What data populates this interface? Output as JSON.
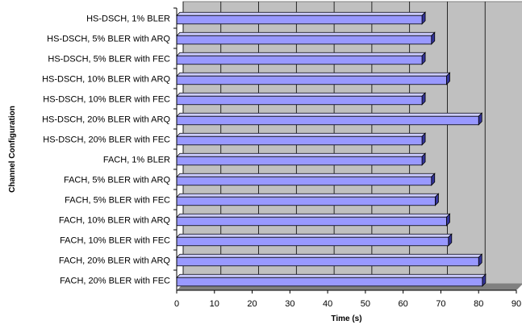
{
  "chart_data": {
    "type": "bar",
    "orientation": "horizontal",
    "style": "3d",
    "categories": [
      "HS-DSCH, 1% BLER",
      "HS-DSCH, 5% BLER with ARQ",
      "HS-DSCH, 5% BLER with FEC",
      "HS-DSCH, 10% BLER with ARQ",
      "HS-DSCH, 10% BLER with FEC",
      "HS-DSCH, 20% BLER with ARQ",
      "HS-DSCH, 20% BLER with FEC",
      "FACH, 1% BLER",
      "FACH, 5% BLER with ARQ",
      "FACH, 5% BLER with FEC",
      "FACH, 10% BLER with ARQ",
      "FACH, 10% BLER with FEC",
      "FACH, 20% BLER with ARQ",
      "FACH, 20% BLER with FEC"
    ],
    "values": [
      65,
      67.5,
      65,
      71.5,
      65,
      80,
      65,
      65,
      67.5,
      68.5,
      71.5,
      72,
      80,
      81
    ],
    "xlabel": "Time (s)",
    "ylabel": "Channel Configuration",
    "xlim": [
      0,
      90
    ],
    "xticks": [
      "0",
      "10",
      "20",
      "30",
      "40",
      "50",
      "60",
      "70",
      "80",
      "90"
    ],
    "grid": true,
    "legend": "none",
    "colors": {
      "bar_face": "#9999ff",
      "bar_top": "#ccccff",
      "bar_side": "#333399",
      "wall": "#c0c0c0",
      "grid": "#000000"
    }
  }
}
